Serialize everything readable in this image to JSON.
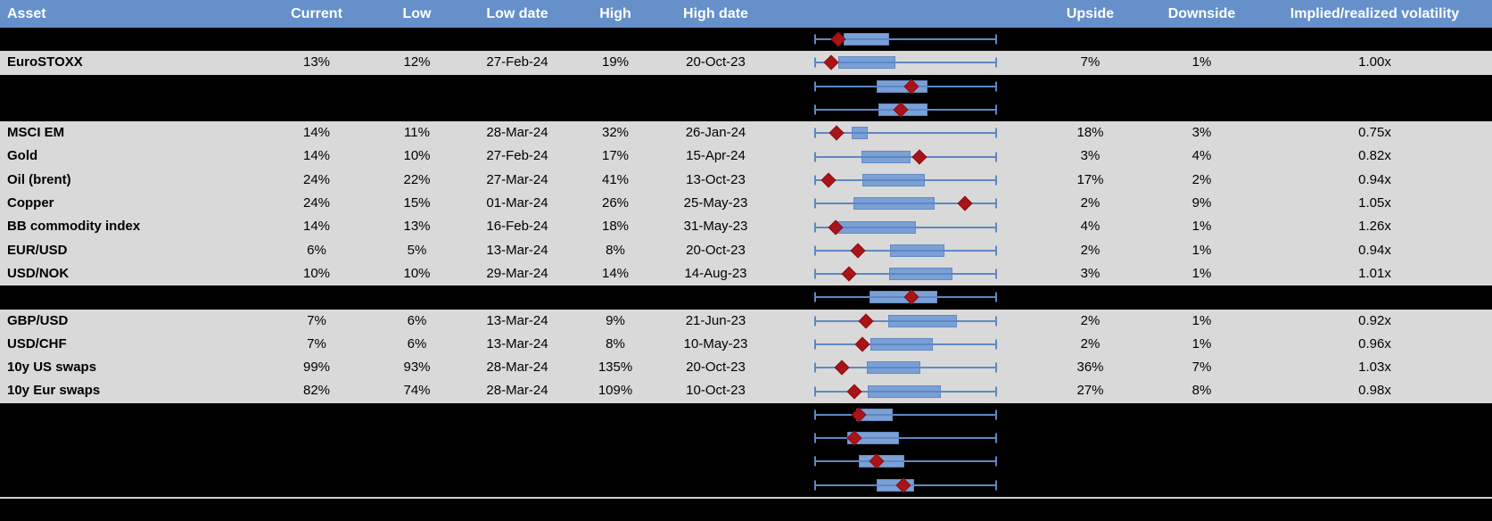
{
  "table": {
    "columns": [
      "Asset",
      "Current",
      "Low",
      "Low date",
      "High",
      "High date",
      "",
      "Upside",
      "Downside",
      "Implied/realized volatility"
    ]
  },
  "colors": {
    "header_bg": "#6590CA",
    "header_text": "#FFFFFF",
    "data_row_bg": "#D9D9D9",
    "spacer_row_bg": "#000000",
    "box_fill": "#7AA0D6",
    "box_border": "#6389C1",
    "whisker": "#5E88C4",
    "diamond": "#A81418",
    "divider": "#CFCFCF",
    "text": "#000000"
  },
  "rows": [
    {
      "type": "spacer",
      "box": {
        "lo": 0.161,
        "hi": 0.41,
        "cur": 0.132
      }
    },
    {
      "type": "data",
      "asset": "EuroSTOXX",
      "current": "13%",
      "low": "12%",
      "low_date": "27-Feb-24",
      "high": "19%",
      "high_date": "20-Oct-23",
      "upside": "7%",
      "downside": "1%",
      "impl_real": "1.00x",
      "box": {
        "lo": 0.132,
        "hi": 0.444,
        "cur": 0.093
      }
    },
    {
      "type": "spacer",
      "box": {
        "lo": 0.341,
        "hi": 0.62,
        "cur": 0.532
      }
    },
    {
      "type": "spacer",
      "box": {
        "lo": 0.351,
        "hi": 0.62,
        "cur": 0.473
      }
    },
    {
      "type": "data",
      "asset": "MSCI EM",
      "current": "14%",
      "low": "11%",
      "low_date": "28-Mar-24",
      "high": "32%",
      "high_date": "26-Jan-24",
      "upside": "18%",
      "downside": "3%",
      "impl_real": "0.75x",
      "box": {
        "lo": 0.205,
        "hi": 0.293,
        "cur": 0.122
      }
    },
    {
      "type": "data",
      "asset": "Gold",
      "current": "14%",
      "low": "10%",
      "low_date": "27-Feb-24",
      "high": "17%",
      "high_date": "15-Apr-24",
      "upside": "3%",
      "downside": "4%",
      "impl_real": "0.82x",
      "box": {
        "lo": 0.259,
        "hi": 0.527,
        "cur": 0.576
      }
    },
    {
      "type": "data",
      "asset": "Oil (brent)",
      "current": "24%",
      "low": "22%",
      "low_date": "27-Mar-24",
      "high": "41%",
      "high_date": "13-Oct-23",
      "upside": "17%",
      "downside": "2%",
      "impl_real": "0.94x",
      "box": {
        "lo": 0.263,
        "hi": 0.605,
        "cur": 0.078
      }
    },
    {
      "type": "data",
      "asset": "Copper",
      "current": "24%",
      "low": "15%",
      "low_date": "01-Mar-24",
      "high": "26%",
      "high_date": "25-May-23",
      "upside": "2%",
      "downside": "9%",
      "impl_real": "1.05x",
      "box": {
        "lo": 0.215,
        "hi": 0.659,
        "cur": 0.824
      }
    },
    {
      "type": "data",
      "asset": "BB commodity index",
      "current": "14%",
      "low": "13%",
      "low_date": "16-Feb-24",
      "high": "18%",
      "high_date": "31-May-23",
      "upside": "4%",
      "downside": "1%",
      "impl_real": "1.26x",
      "box": {
        "lo": 0.122,
        "hi": 0.556,
        "cur": 0.117
      }
    },
    {
      "type": "data",
      "asset": "EUR/USD",
      "current": "6%",
      "low": "5%",
      "low_date": "13-Mar-24",
      "high": "8%",
      "high_date": "20-Oct-23",
      "upside": "2%",
      "downside": "1%",
      "impl_real": "0.94x",
      "box": {
        "lo": 0.415,
        "hi": 0.712,
        "cur": 0.239
      }
    },
    {
      "type": "data",
      "asset": "USD/NOK",
      "current": "10%",
      "low": "10%",
      "low_date": "29-Mar-24",
      "high": "14%",
      "high_date": "14-Aug-23",
      "upside": "3%",
      "downside": "1%",
      "impl_real": "1.01x",
      "box": {
        "lo": 0.41,
        "hi": 0.756,
        "cur": 0.19
      }
    },
    {
      "type": "spacer",
      "box": {
        "lo": 0.302,
        "hi": 0.673,
        "cur": 0.532
      }
    },
    {
      "type": "data",
      "asset": "GBP/USD",
      "current": "7%",
      "low": "6%",
      "low_date": "13-Mar-24",
      "high": "9%",
      "high_date": "21-Jun-23",
      "upside": "2%",
      "downside": "1%",
      "impl_real": "0.92x",
      "box": {
        "lo": 0.405,
        "hi": 0.78,
        "cur": 0.283
      }
    },
    {
      "type": "data",
      "asset": "USD/CHF",
      "current": "7%",
      "low": "6%",
      "low_date": "13-Mar-24",
      "high": "8%",
      "high_date": "10-May-23",
      "upside": "2%",
      "downside": "1%",
      "impl_real": "0.96x",
      "box": {
        "lo": 0.307,
        "hi": 0.649,
        "cur": 0.263
      }
    },
    {
      "type": "data",
      "asset": "10y US swaps",
      "current": "99%",
      "low": "93%",
      "low_date": "28-Mar-24",
      "high": "135%",
      "high_date": "20-Oct-23",
      "upside": "36%",
      "downside": "7%",
      "impl_real": "1.03x",
      "box": {
        "lo": 0.288,
        "hi": 0.58,
        "cur": 0.151
      }
    },
    {
      "type": "data",
      "asset": "10y Eur swaps",
      "current": "82%",
      "low": "74%",
      "low_date": "28-Mar-24",
      "high": "109%",
      "high_date": "10-Oct-23",
      "upside": "27%",
      "downside": "8%",
      "impl_real": "0.98x",
      "box": {
        "lo": 0.293,
        "hi": 0.693,
        "cur": 0.22
      }
    },
    {
      "type": "spacer",
      "box": {
        "lo": 0.229,
        "hi": 0.429,
        "cur": 0.244
      }
    },
    {
      "type": "spacer",
      "box": {
        "lo": 0.18,
        "hi": 0.463,
        "cur": 0.22
      }
    },
    {
      "type": "spacer",
      "box": {
        "lo": 0.244,
        "hi": 0.493,
        "cur": 0.341
      }
    },
    {
      "type": "spacer",
      "box": {
        "lo": 0.341,
        "hi": 0.546,
        "cur": 0.488
      }
    }
  ],
  "chart_data": {
    "type": "table",
    "title": "",
    "columns": [
      "Asset",
      "Current",
      "Low",
      "Low date",
      "High",
      "High date",
      "Upside",
      "Downside",
      "Implied/realized volatility"
    ],
    "rows": [
      [
        "EuroSTOXX",
        "13%",
        "12%",
        "27-Feb-24",
        "19%",
        "20-Oct-23",
        "7%",
        "1%",
        "1.00x"
      ],
      [
        "MSCI EM",
        "14%",
        "11%",
        "28-Mar-24",
        "32%",
        "26-Jan-24",
        "18%",
        "3%",
        "0.75x"
      ],
      [
        "Gold",
        "14%",
        "10%",
        "27-Feb-24",
        "17%",
        "15-Apr-24",
        "3%",
        "4%",
        "0.82x"
      ],
      [
        "Oil (brent)",
        "24%",
        "22%",
        "27-Mar-24",
        "41%",
        "13-Oct-23",
        "17%",
        "2%",
        "0.94x"
      ],
      [
        "Copper",
        "24%",
        "15%",
        "01-Mar-24",
        "26%",
        "25-May-23",
        "2%",
        "9%",
        "1.05x"
      ],
      [
        "BB commodity index",
        "14%",
        "13%",
        "16-Feb-24",
        "18%",
        "31-May-23",
        "4%",
        "1%",
        "1.26x"
      ],
      [
        "EUR/USD",
        "6%",
        "5%",
        "13-Mar-24",
        "8%",
        "20-Oct-23",
        "2%",
        "1%",
        "0.94x"
      ],
      [
        "USD/NOK",
        "10%",
        "10%",
        "29-Mar-24",
        "14%",
        "14-Aug-23",
        "3%",
        "1%",
        "1.01x"
      ],
      [
        "GBP/USD",
        "7%",
        "6%",
        "13-Mar-24",
        "9%",
        "21-Jun-23",
        "2%",
        "1%",
        "0.92x"
      ],
      [
        "USD/CHF",
        "7%",
        "6%",
        "13-Mar-24",
        "8%",
        "10-May-23",
        "2%",
        "1%",
        "0.96x"
      ],
      [
        "10y US swaps",
        "99%",
        "93%",
        "28-Mar-24",
        "135%",
        "20-Oct-23",
        "36%",
        "7%",
        "1.03x"
      ],
      [
        "10y Eur swaps",
        "82%",
        "74%",
        "28-Mar-24",
        "109%",
        "10-Oct-23",
        "27%",
        "8%",
        "0.98x"
      ]
    ],
    "boxplots": {
      "note": "Horizontal box-whisker per row; whiskers span a fixed normalized 0-1 range; box = [lo,hi], red diamond marker = cur.",
      "series": [
        {
          "name": "",
          "box": [
            0.161,
            0.41
          ],
          "marker": 0.132
        },
        {
          "name": "EuroSTOXX",
          "box": [
            0.132,
            0.444
          ],
          "marker": 0.093
        },
        {
          "name": "",
          "box": [
            0.341,
            0.62
          ],
          "marker": 0.532
        },
        {
          "name": "",
          "box": [
            0.351,
            0.62
          ],
          "marker": 0.473
        },
        {
          "name": "MSCI EM",
          "box": [
            0.205,
            0.293
          ],
          "marker": 0.122
        },
        {
          "name": "Gold",
          "box": [
            0.259,
            0.527
          ],
          "marker": 0.576
        },
        {
          "name": "Oil (brent)",
          "box": [
            0.263,
            0.605
          ],
          "marker": 0.078
        },
        {
          "name": "Copper",
          "box": [
            0.215,
            0.659
          ],
          "marker": 0.824
        },
        {
          "name": "BB commodity index",
          "box": [
            0.122,
            0.556
          ],
          "marker": 0.117
        },
        {
          "name": "EUR/USD",
          "box": [
            0.415,
            0.712
          ],
          "marker": 0.239
        },
        {
          "name": "USD/NOK",
          "box": [
            0.41,
            0.756
          ],
          "marker": 0.19
        },
        {
          "name": "",
          "box": [
            0.302,
            0.673
          ],
          "marker": 0.532
        },
        {
          "name": "GBP/USD",
          "box": [
            0.405,
            0.78
          ],
          "marker": 0.283
        },
        {
          "name": "USD/CHF",
          "box": [
            0.307,
            0.649
          ],
          "marker": 0.263
        },
        {
          "name": "10y US swaps",
          "box": [
            0.288,
            0.58
          ],
          "marker": 0.151
        },
        {
          "name": "10y Eur swaps",
          "box": [
            0.293,
            0.693
          ],
          "marker": 0.22
        },
        {
          "name": "",
          "box": [
            0.229,
            0.429
          ],
          "marker": 0.244
        },
        {
          "name": "",
          "box": [
            0.18,
            0.463
          ],
          "marker": 0.22
        },
        {
          "name": "",
          "box": [
            0.244,
            0.493
          ],
          "marker": 0.341
        },
        {
          "name": "",
          "box": [
            0.341,
            0.546
          ],
          "marker": 0.488
        }
      ]
    }
  }
}
